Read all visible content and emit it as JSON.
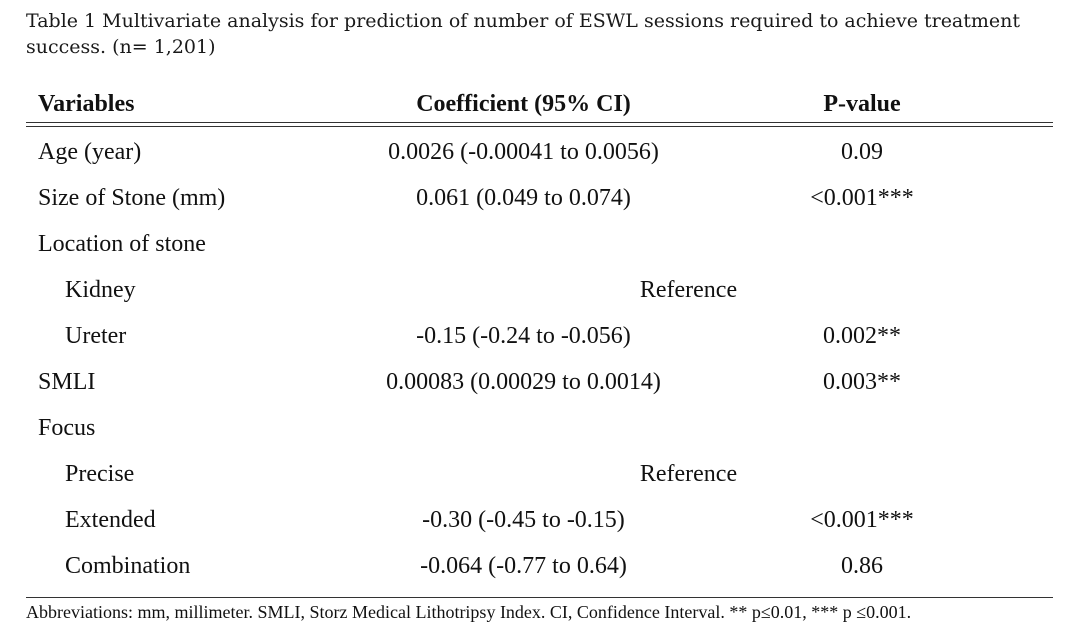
{
  "caption": "Table 1 Multivariate analysis for prediction of number of ESWL sessions required to achieve treatment success. (n= 1,201)",
  "headers": {
    "variables": "Variables",
    "coefficient": "Coefficient (95% CI)",
    "pvalue": "P-value"
  },
  "rows": [
    {
      "variable": "Age (year)",
      "coefficient": "0.0026 (-0.00041 to 0.0056)",
      "pvalue": "0.09"
    },
    {
      "variable": "Size of Stone (mm)",
      "coefficient": "0.061 (0.049 to 0.074)",
      "pvalue": "<0.001***"
    },
    {
      "variable": "Location of stone"
    },
    {
      "variable": "Kidney",
      "reference": "Reference"
    },
    {
      "variable": "Ureter",
      "coefficient": "-0.15 (-0.24 to -0.056)",
      "pvalue": "0.002**"
    },
    {
      "variable": "SMLI",
      "coefficient": "0.00083 (0.00029 to 0.0014)",
      "pvalue": "0.003**"
    },
    {
      "variable": "Focus"
    },
    {
      "variable": "Precise",
      "reference": "Reference"
    },
    {
      "variable": "Extended",
      "coefficient": "-0.30 (-0.45 to -0.15)",
      "pvalue": "<0.001***"
    },
    {
      "variable": "Combination",
      "coefficient": "-0.064 (-0.77 to 0.64)",
      "pvalue": "0.86"
    }
  ],
  "footnote": "Abbreviations: mm, millimeter. SMLI, Storz Medical Lithotripsy Index. CI, Confidence Interval. ** p≤0.01, *** p ≤0.001."
}
